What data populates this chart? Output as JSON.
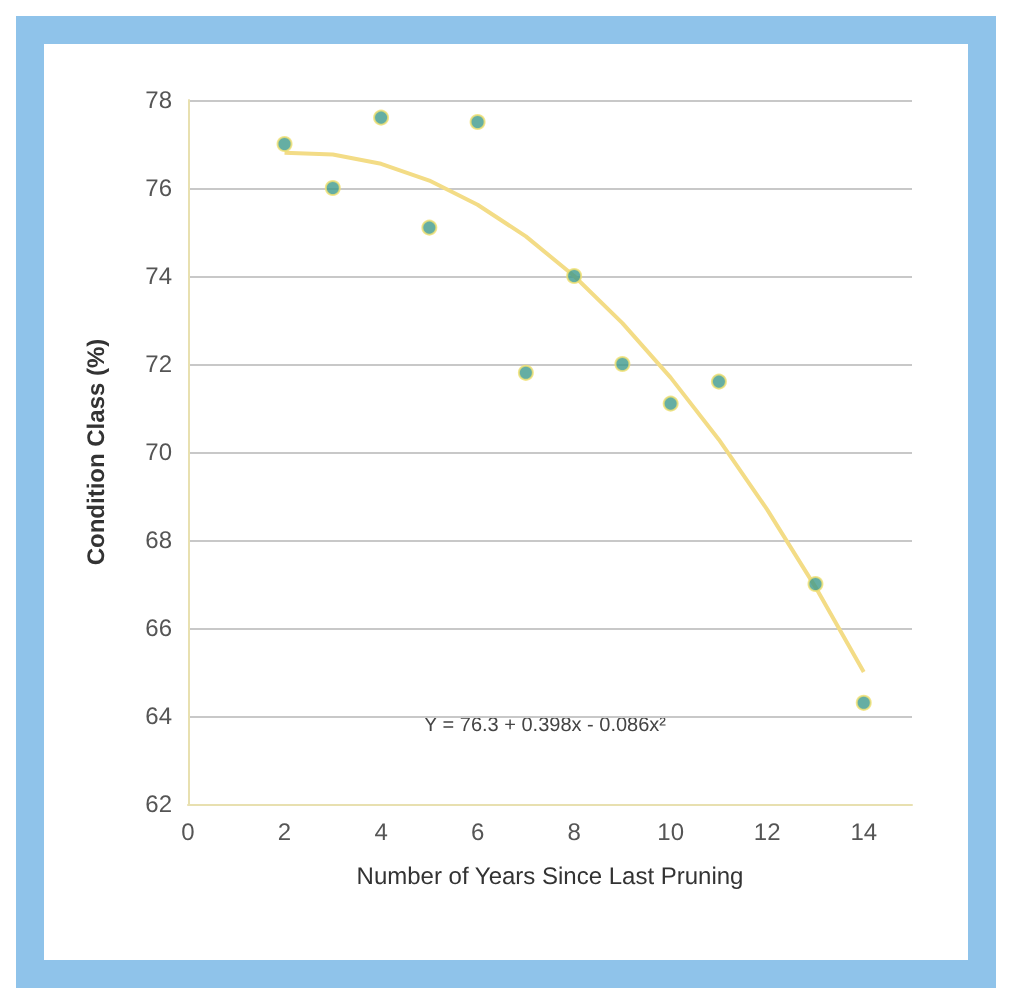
{
  "chart_data": {
    "type": "scatter",
    "xlabel": "Number of Years Since Last Pruning",
    "ylabel": "Condition Class (%)",
    "xlim": [
      0,
      15
    ],
    "xticks": [
      0,
      2,
      4,
      6,
      8,
      10,
      12,
      14
    ],
    "ylim": [
      62,
      78
    ],
    "yticks": [
      62,
      64,
      66,
      68,
      70,
      72,
      74,
      76,
      78
    ],
    "grid": "y",
    "marker": "circle",
    "annotations": [
      "Y = 76.3 + 0.398x - 0.086x²"
    ],
    "series": [
      {
        "color": "#3f9a8c",
        "x": [
          2,
          3,
          4,
          5,
          6,
          7,
          8,
          9,
          10,
          11,
          13,
          14
        ],
        "values": [
          77.0,
          76.0,
          77.6,
          75.1,
          77.5,
          71.8,
          74.0,
          72.0,
          71.1,
          71.6,
          67.0,
          64.3
        ]
      },
      {
        "type": "line",
        "color": "#f3dc86",
        "marker": "none",
        "x": [
          2,
          3,
          4,
          5,
          6,
          7,
          8,
          9,
          10,
          11,
          12,
          13,
          14
        ],
        "values": [
          76.8,
          76.76,
          76.55,
          76.17,
          75.62,
          74.9,
          74.0,
          72.93,
          71.69,
          70.28,
          68.69,
          66.93,
          65.0
        ]
      }
    ]
  }
}
